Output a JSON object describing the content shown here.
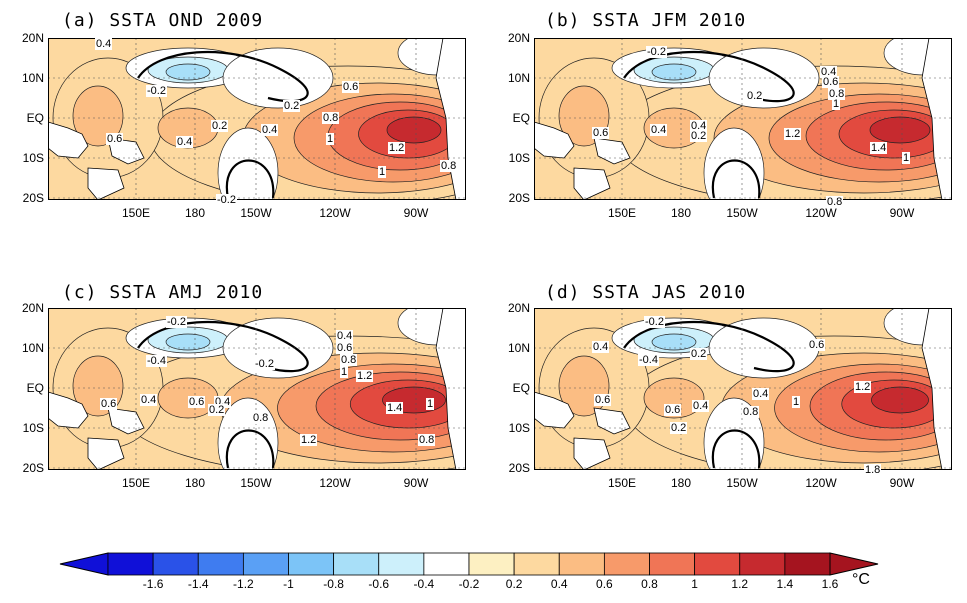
{
  "panels": [
    {
      "title": "(a) SSTA OND 2009",
      "labels": [
        "0.4",
        "-0.2",
        "0.6",
        "0.4",
        "0.2",
        "0.2",
        "0.4",
        "0.6",
        "0.8",
        "1",
        "1.2",
        "0.8",
        "1",
        "-0.2"
      ]
    },
    {
      "title": "(b) SSTA JFM 2010",
      "labels": [
        "-0.2",
        "0.2",
        "0.4",
        "0.6",
        "0.8",
        "1",
        "0.6",
        "0.4",
        "0.4",
        "0.2",
        "1.2",
        "1.4",
        "1",
        "0.8"
      ]
    },
    {
      "title": "(c) SSTA AMJ 2010",
      "labels": [
        "-0.2",
        "-0.4",
        "0.4",
        "0.6",
        "0.8",
        "1",
        "-0.2",
        "1.2",
        "0.6",
        "0.4",
        "0.6",
        "0.4",
        "0.2",
        "0.8",
        "1.4",
        "1",
        "1.2",
        "0.8"
      ]
    },
    {
      "title": "(d) SSTA JAS 2010",
      "labels": [
        "-0.2",
        "0.4",
        "-0.4",
        "0.2",
        "0.6",
        "0.4",
        "1.2",
        "0.6",
        "0.6",
        "0.4",
        "1",
        "0.8",
        "0.2",
        "1.8"
      ]
    }
  ],
  "lat_ticks": [
    "20N",
    "10N",
    "EQ",
    "10S",
    "20S"
  ],
  "lon_ticks": [
    "150E",
    "180",
    "150W",
    "120W",
    "90W"
  ],
  "colorbar": {
    "ticks": [
      "-1.6",
      "-1.4",
      "-1.2",
      "-1",
      "-0.8",
      "-0.6",
      "-0.4",
      "-0.2",
      "0.2",
      "0.4",
      "0.6",
      "0.8",
      "1",
      "1.2",
      "1.4",
      "1.6"
    ],
    "colors": [
      "#1010d8",
      "#2a52e8",
      "#3f7cf0",
      "#5aa0f5",
      "#7cc4f7",
      "#a8dff8",
      "#cdf0fb",
      "#ffffff",
      "#fdf0c2",
      "#fdd9a0",
      "#fbbd83",
      "#f79a6a",
      "#f07556",
      "#e24a3f",
      "#c62a2f",
      "#a5141f"
    ],
    "unit": "°C"
  }
}
